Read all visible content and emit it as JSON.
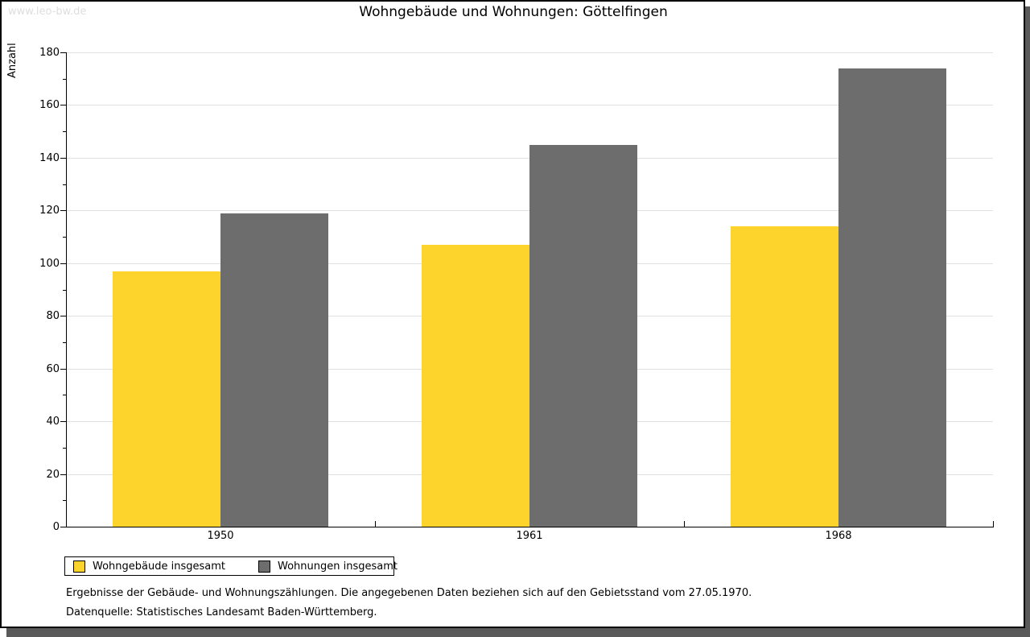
{
  "watermark": "www.leo-bw.de",
  "title": "Wohngebäude und Wohnungen: Göttelfingen",
  "chart_data": {
    "type": "bar",
    "title": "Wohngebäude und Wohnungen: Göttelfingen",
    "categories": [
      "1950",
      "1961",
      "1968"
    ],
    "series": [
      {
        "name": "Wohngebäude insgesamt",
        "color": "#fcd42b",
        "values": [
          97,
          107,
          114
        ]
      },
      {
        "name": "Wohnungen insgesamt",
        "color": "#6d6d6d",
        "values": [
          119,
          145,
          174
        ]
      }
    ],
    "xlabel": "",
    "ylabel": "Anzahl",
    "ylim": [
      0,
      180
    ],
    "yticks": [
      0,
      20,
      40,
      60,
      80,
      100,
      120,
      140,
      160,
      180
    ],
    "minor_ytick_step": 10,
    "grid": true,
    "legend_position": "bottom-left",
    "colors": {
      "grid": "#e0e0e0",
      "axis": "#000000",
      "background": "#ffffff"
    }
  },
  "footnotes": [
    "Ergebnisse der Gebäude- und Wohnungszählungen. Die angegebenen Daten beziehen sich auf den Gebietsstand vom 27.05.1970.",
    "Datenquelle: Statistisches Landesamt Baden-Württemberg."
  ]
}
